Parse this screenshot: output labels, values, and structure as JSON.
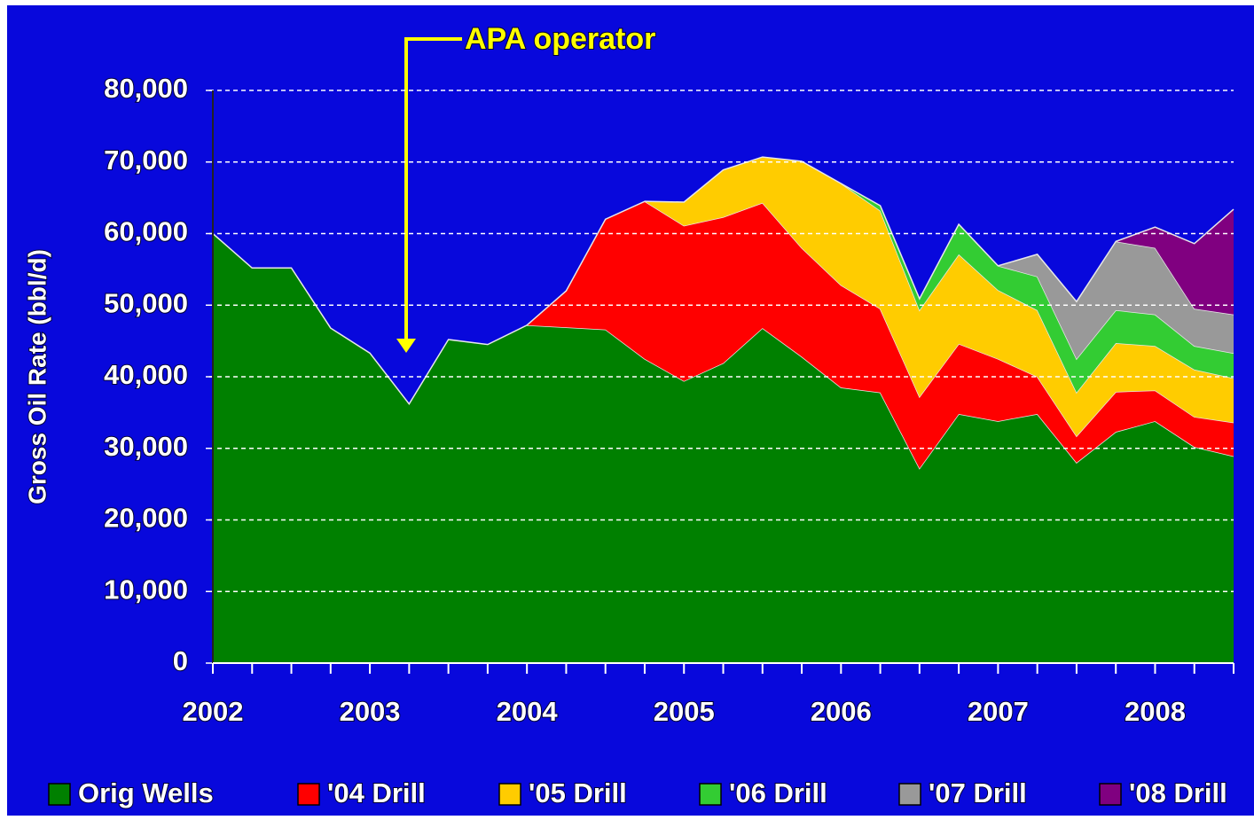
{
  "chart_data": {
    "type": "stacked_area",
    "annotation": "APA operator",
    "y_label": "Gross Oil Rate (bbl/d)",
    "categories": [
      "2002",
      null,
      null,
      null,
      "2003",
      null,
      null,
      null,
      "2004",
      null,
      null,
      null,
      "2005",
      null,
      null,
      null,
      "2006",
      null,
      null,
      null,
      "2007",
      null,
      null,
      null,
      "2008",
      null,
      null
    ],
    "ylim": [
      0,
      80000
    ],
    "yticks": [
      0,
      {
        "value": 10000,
        "label": "10,000"
      },
      {
        "value": 20000,
        "label": "20,000"
      },
      {
        "value": 30000,
        "label": "30,000"
      },
      {
        "value": 40000,
        "label": "40,000"
      },
      {
        "value": 50000,
        "label": "50,000"
      },
      {
        "value": 60000,
        "label": "60,000"
      },
      {
        "value": 70000,
        "label": "70,000"
      },
      {
        "value": 80000,
        "label": "80,000"
      }
    ],
    "grid": true,
    "legend": "bottom",
    "series": [
      {
        "name": "Orig Wells",
        "color": "#008000",
        "values": [
          60000,
          55200,
          55200,
          46800,
          43300,
          36200,
          45200,
          44500,
          47200,
          46900,
          46600,
          42500,
          39400,
          41900,
          46800,
          42800,
          38500,
          37800,
          27200,
          34800,
          33800,
          34800,
          28000,
          32300,
          33800,
          30200,
          28900
        ]
      },
      {
        "name": "'04 Drill",
        "color": "#ff0000",
        "values": [
          null,
          null,
          null,
          null,
          null,
          null,
          null,
          null,
          0,
          5100,
          15400,
          22000,
          21700,
          20400,
          17500,
          15200,
          14300,
          11700,
          10000,
          9800,
          8700,
          5200,
          3700,
          5600,
          4300,
          4200,
          4700
        ]
      },
      {
        "name": "'05 Drill",
        "color": "#ffcc00",
        "values": [
          null,
          null,
          null,
          null,
          null,
          null,
          null,
          null,
          null,
          null,
          null,
          0,
          3300,
          6600,
          6400,
          12100,
          14200,
          13700,
          12100,
          12500,
          9600,
          9300,
          6100,
          6800,
          6200,
          6600,
          6200
        ]
      },
      {
        "name": "'06 Drill",
        "color": "#33cc33",
        "values": [
          null,
          null,
          null,
          null,
          null,
          null,
          null,
          null,
          null,
          null,
          null,
          null,
          null,
          null,
          null,
          null,
          0,
          700,
          1600,
          4200,
          3400,
          4700,
          4700,
          4600,
          4400,
          3300,
          3500
        ]
      },
      {
        "name": "'07 Drill",
        "color": "#999999",
        "values": [
          null,
          null,
          null,
          null,
          null,
          null,
          null,
          null,
          null,
          null,
          null,
          null,
          null,
          null,
          null,
          null,
          null,
          null,
          null,
          null,
          0,
          3100,
          8000,
          9600,
          9300,
          5200,
          5400
        ]
      },
      {
        "name": "'08 Drill",
        "color": "#800080",
        "values": [
          null,
          null,
          null,
          null,
          null,
          null,
          null,
          null,
          null,
          null,
          null,
          null,
          null,
          null,
          null,
          null,
          null,
          null,
          null,
          null,
          null,
          null,
          null,
          0,
          2900,
          9100,
          14700
        ]
      }
    ]
  }
}
